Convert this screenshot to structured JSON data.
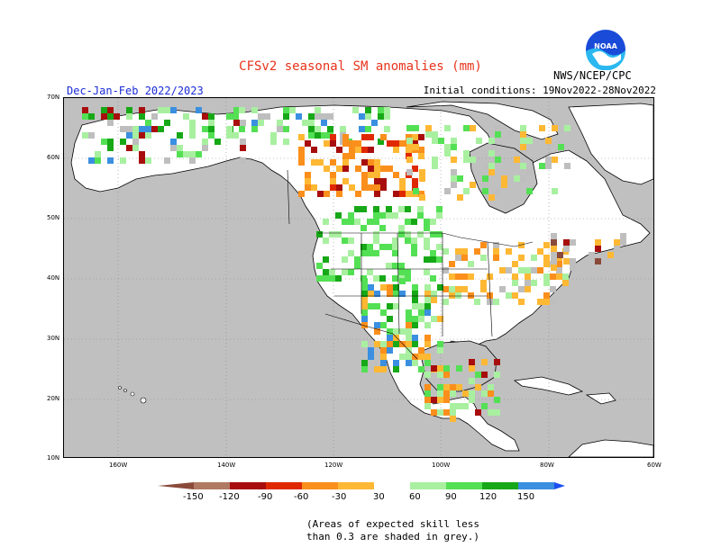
{
  "header": {
    "title": "CFSv2 seasonal SM anomalies (mm)",
    "season": "Dec-Jan-Feb 2022/2023",
    "initial_conditions": "Initial conditions: 19Nov2022-28Nov2022",
    "agency": "NWS/NCEP/CPC",
    "logo_text": "NOAA"
  },
  "map": {
    "lat_labels": [
      "70N",
      "60N",
      "50N",
      "40N",
      "30N",
      "20N",
      "10N"
    ],
    "lon_labels": [
      "160W",
      "140W",
      "120W",
      "100W",
      "80W",
      "60W"
    ],
    "skill_shade_color": "#bebebe",
    "ocean_color": "#c0c0c0",
    "land_color": "#ffffff"
  },
  "legend": {
    "labels": [
      "-150",
      "-120",
      "-90",
      "-60",
      "-30",
      "30",
      "60",
      "90",
      "120",
      "150"
    ],
    "colors": [
      "#8a4a3a",
      "#b07a62",
      "#a80d0d",
      "#e02800",
      "#fb8f1c",
      "#ffb833",
      "#ffffff",
      "#a8f0a0",
      "#54e054",
      "#17a817",
      "#3a8fe0",
      "#1b4ff0"
    ]
  },
  "note": {
    "line1": "(Areas of expected skill less",
    "line2": "than 0.3 are shaded in grey.)"
  }
}
